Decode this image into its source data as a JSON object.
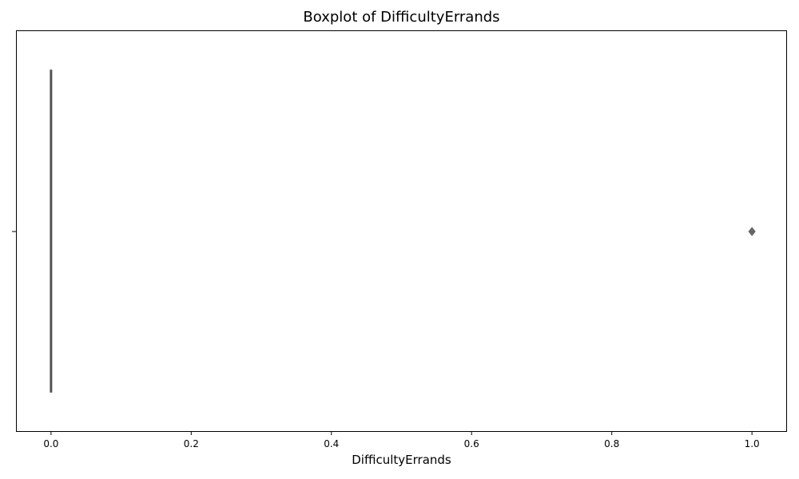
{
  "chart_data": {
    "type": "boxplot",
    "title": "Boxplot of DifficultyErrands",
    "xlabel": "DifficultyErrands",
    "ylabel": "",
    "orientation": "horizontal",
    "xlim": [
      -0.05,
      1.05
    ],
    "xticks": [
      0.0,
      0.2,
      0.4,
      0.6,
      0.8,
      1.0
    ],
    "xtick_labels": [
      "0.0",
      "0.2",
      "0.4",
      "0.6",
      "0.8",
      "1.0"
    ],
    "series": [
      {
        "q1": 0.0,
        "median": 0.0,
        "q3": 0.0,
        "whisker_low": 0.0,
        "whisker_high": 0.0,
        "outliers": [
          1.0
        ]
      }
    ],
    "colors": {
      "box": "#555555",
      "outlier": "#666666"
    },
    "grid": false,
    "legend": false
  }
}
